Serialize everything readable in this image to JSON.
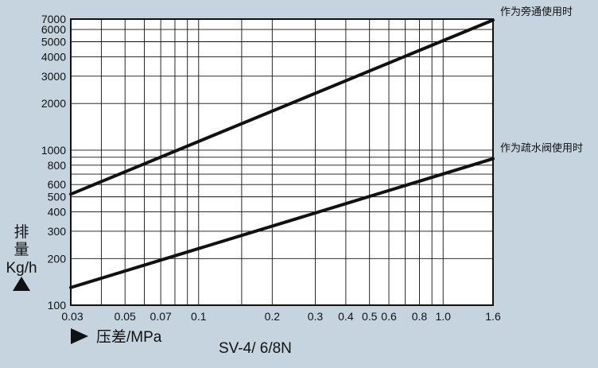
{
  "chart_data": {
    "type": "line",
    "title": "",
    "caption": "SV-4/ 6/8N",
    "x_axis": {
      "label": "压差/MPa",
      "scale": "log",
      "range": [
        0.03,
        1.6
      ],
      "ticks": [
        {
          "value": 0.03,
          "label": "0.03"
        },
        {
          "value": 0.05,
          "label": "0.05"
        },
        {
          "value": 0.07,
          "label": "0.07"
        },
        {
          "value": 0.1,
          "label": "0.1"
        },
        {
          "value": 0.2,
          "label": "0.2"
        },
        {
          "value": 0.3,
          "label": "0.3"
        },
        {
          "value": 0.4,
          "label": "0.4"
        },
        {
          "value": 0.5,
          "label": "0.5"
        },
        {
          "value": 0.6,
          "label": "0.6"
        },
        {
          "value": 0.8,
          "label": "0.8"
        },
        {
          "value": 1.0,
          "label": "1.0"
        },
        {
          "value": 1.6,
          "label": "1.6"
        }
      ],
      "gridlines": [
        0.03,
        0.04,
        0.05,
        0.06,
        0.07,
        0.08,
        0.09,
        0.1,
        0.15,
        0.2,
        0.3,
        0.4,
        0.5,
        0.6,
        0.7,
        0.8,
        0.9,
        1.0,
        1.6
      ]
    },
    "y_axis": {
      "label_lines": [
        "排",
        "量",
        "Kg/h"
      ],
      "scale": "log",
      "range": [
        100,
        7000
      ],
      "ticks": [
        {
          "value": 100,
          "label": "100"
        },
        {
          "value": 200,
          "label": "200"
        },
        {
          "value": 300,
          "label": "300"
        },
        {
          "value": 400,
          "label": "400"
        },
        {
          "value": 500,
          "label": "500"
        },
        {
          "value": 600,
          "label": "600"
        },
        {
          "value": 800,
          "label": "800"
        },
        {
          "value": 1000,
          "label": "1000"
        },
        {
          "value": 2000,
          "label": "2000"
        },
        {
          "value": 3000,
          "label": "3000"
        },
        {
          "value": 4000,
          "label": "4000"
        },
        {
          "value": 5000,
          "label": "5000"
        },
        {
          "value": 6000,
          "label": "6000"
        },
        {
          "value": 7000,
          "label": "7000"
        }
      ],
      "gridlines": [
        100,
        200,
        300,
        400,
        500,
        600,
        700,
        800,
        900,
        1000,
        2000,
        3000,
        4000,
        5000,
        6000,
        7000
      ]
    },
    "grid": true,
    "series": [
      {
        "name": "作为旁通使用时",
        "x": [
          0.03,
          1.6
        ],
        "y": [
          520,
          6900
        ]
      },
      {
        "name": "作为疏水阀使用时",
        "x": [
          0.03,
          1.6
        ],
        "y": [
          130,
          880
        ]
      }
    ]
  },
  "colors": {
    "background": "#c5d4de",
    "plot_background": "#ffffff",
    "ink": "#111111"
  }
}
